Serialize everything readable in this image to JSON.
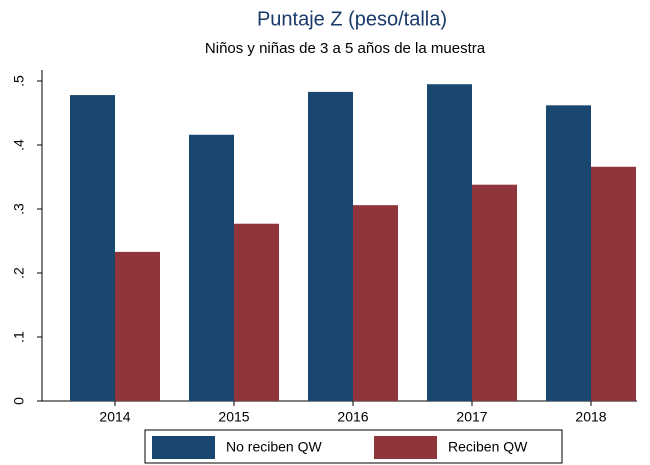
{
  "chart_data": {
    "type": "bar",
    "title": "Puntaje Z (peso/talla)",
    "subtitle": "Niños y niñas de 3 a 5 años de la muestra",
    "categories": [
      "2014",
      "2015",
      "2016",
      "2017",
      "2018"
    ],
    "series": [
      {
        "name": "No reciben QW",
        "color": "#1a476f",
        "values": [
          0.478,
          0.416,
          0.483,
          0.495,
          0.462
        ]
      },
      {
        "name": "Reciben QW",
        "color": "#90353b",
        "values": [
          0.233,
          0.277,
          0.306,
          0.338,
          0.366
        ]
      }
    ],
    "ylim": [
      0,
      0.5
    ],
    "yticks": [
      0,
      {
        "value": 0.1,
        "label": ".1"
      },
      {
        "value": 0.2,
        "label": ".2"
      },
      {
        "value": 0.3,
        "label": ".3"
      },
      {
        "value": 0.4,
        "label": ".4"
      },
      {
        "value": 0.5,
        "label": ".5"
      }
    ],
    "legend": "bottom"
  }
}
